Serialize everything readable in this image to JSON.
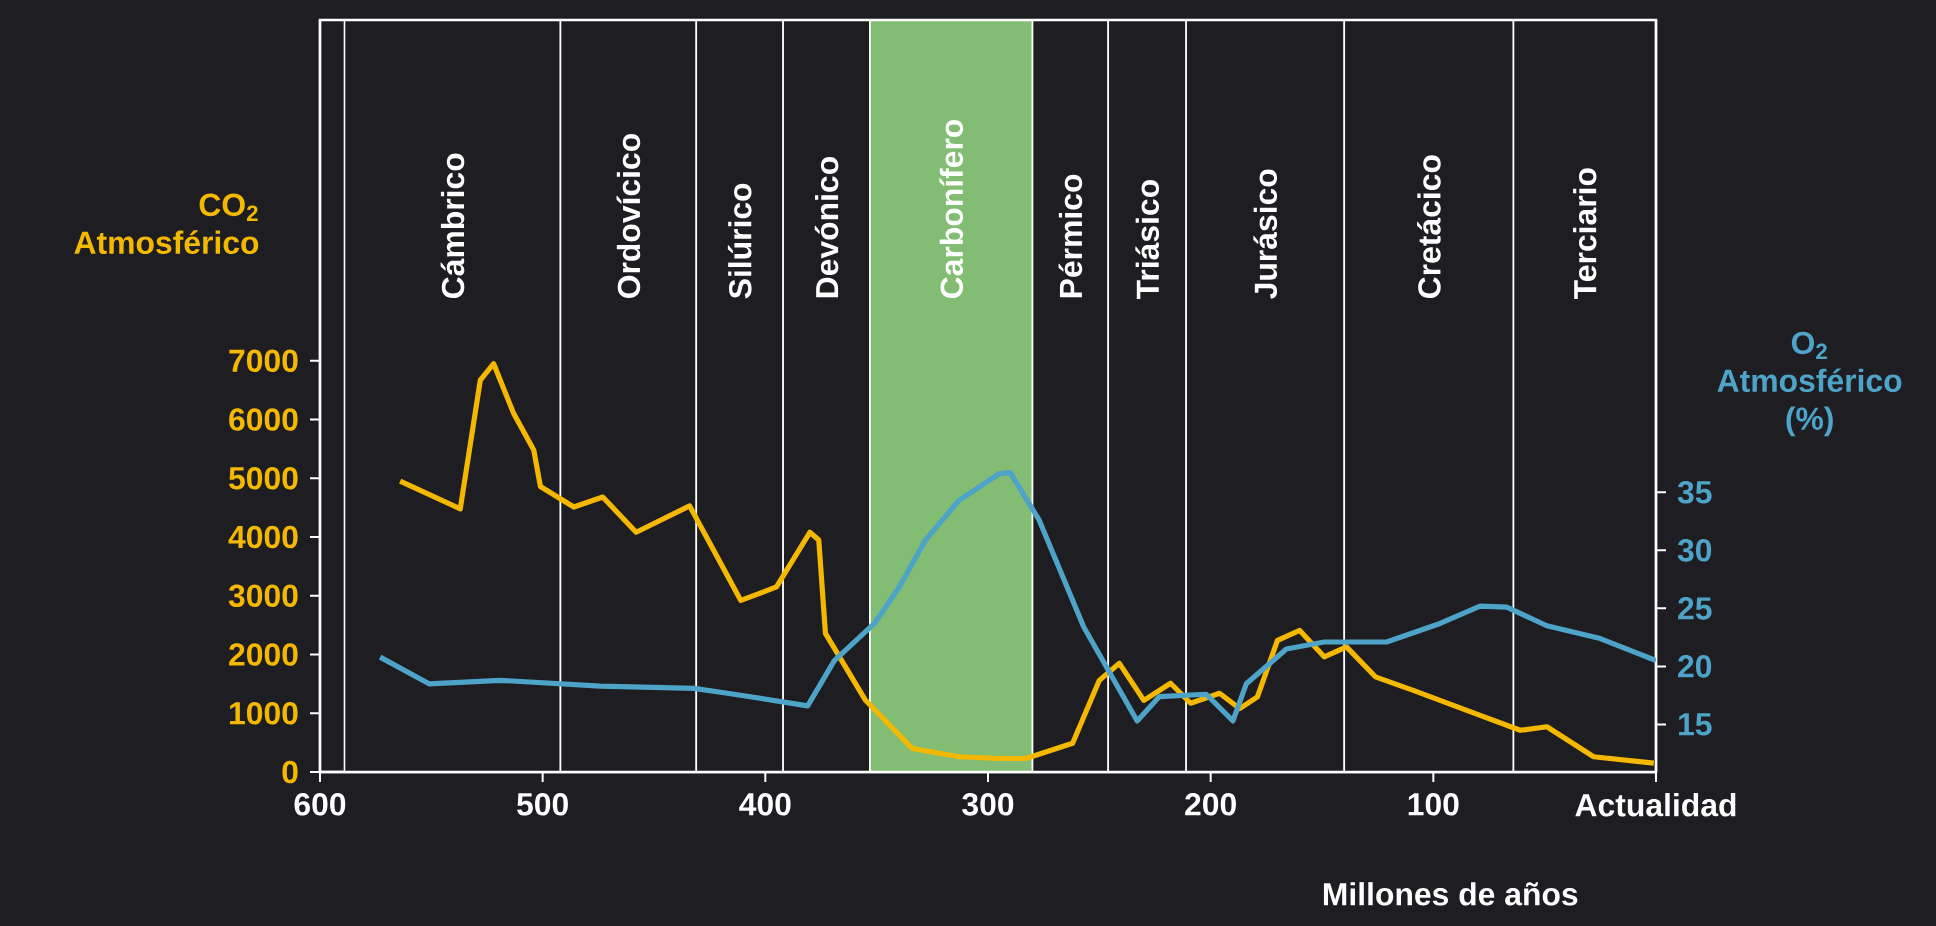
{
  "chart_data": {
    "type": "line",
    "xlabel": "Millones de años",
    "ylabel": "CO$_{2}$ Atmosférico",
    "y2label": "O$_{2}$ Atmosférico (%)",
    "xlim": [
      600,
      0
    ],
    "xticks": [
      600,
      500,
      400,
      300,
      200,
      100,
      {
        "value": 0,
        "label": "Actualidad"
      }
    ],
    "ylim": [
      0,
      12800
    ],
    "yticks": [
      0,
      1000,
      2000,
      3000,
      4000,
      5000,
      6000,
      7000
    ],
    "y2lim": [
      10.9,
      75.7
    ],
    "y2ticks": [
      15,
      20,
      25,
      30,
      35
    ],
    "grid": false,
    "series": [
      {
        "color": "#f5b800",
        "x": [
          564,
          537,
          528,
          522,
          513,
          504,
          501,
          486,
          473,
          458,
          434,
          411,
          395,
          380,
          376,
          373,
          355,
          334,
          313,
          295,
          283,
          262,
          250,
          241,
          230,
          218,
          209,
          196,
          187,
          179,
          170,
          160,
          149,
          139,
          126,
          109,
          85,
          61,
          49,
          28,
          1
        ],
        "values": [
          4950,
          4480,
          6670,
          6950,
          6100,
          5480,
          4860,
          4510,
          4680,
          4080,
          4530,
          2920,
          3150,
          4080,
          3950,
          2360,
          1220,
          400,
          260,
          230,
          230,
          490,
          1560,
          1850,
          1220,
          1510,
          1170,
          1340,
          1080,
          1280,
          2240,
          2410,
          1960,
          2130,
          1620,
          1390,
          1050,
          710,
          770,
          260,
          150
        ]
      },
      {
        "color": "#4ea3c8",
        "axis": "y2",
        "x": [
          573,
          551,
          519,
          474,
          432,
          414,
          381,
          369,
          351,
          340,
          328,
          313,
          295,
          290,
          277,
          257,
          233,
          223,
          202,
          190,
          184,
          166,
          149,
          121,
          97,
          79,
          67,
          49,
          25,
          0
        ],
        "values": [
          20.8,
          18.5,
          18.8,
          18.3,
          18.1,
          17.6,
          16.6,
          20.5,
          23.7,
          26.8,
          30.9,
          34.3,
          36.6,
          36.7,
          32.6,
          23.4,
          15.3,
          17.4,
          17.6,
          15.3,
          18.5,
          21.5,
          22.1,
          22.1,
          23.7,
          25.2,
          25.1,
          23.5,
          22.4,
          20.5
        ]
      }
    ],
    "bands": [
      {
        "axis": "x",
        "from": 589,
        "to": 492,
        "label": "Cámbrico",
        "color": "#1e1e22"
      },
      {
        "axis": "x",
        "from": 492,
        "to": 431,
        "label": "Ordovícico",
        "color": "#1e1e22"
      },
      {
        "axis": "x",
        "from": 431,
        "to": 392,
        "label": "Silúrico",
        "color": "#1e1e22"
      },
      {
        "axis": "x",
        "from": 392,
        "to": 353,
        "label": "Devónico",
        "color": "#1e1e22"
      },
      {
        "axis": "x",
        "from": 353,
        "to": 280,
        "label": "Carbonífero",
        "color": "#82bd73"
      },
      {
        "axis": "x",
        "from": 280,
        "to": 246,
        "label": "Pérmico",
        "color": "#1e1e22"
      },
      {
        "axis": "x",
        "from": 246,
        "to": 211,
        "label": "Triásico",
        "color": "#1e1e22"
      },
      {
        "axis": "x",
        "from": 211,
        "to": 140,
        "label": "Jurásico",
        "color": "#1e1e22"
      },
      {
        "axis": "x",
        "from": 140,
        "to": 64,
        "label": "Cretácico",
        "color": "#1e1e22"
      },
      {
        "axis": "x",
        "from": 64,
        "to": 0,
        "label": "Terciario",
        "color": "#1e1e22"
      }
    ]
  }
}
